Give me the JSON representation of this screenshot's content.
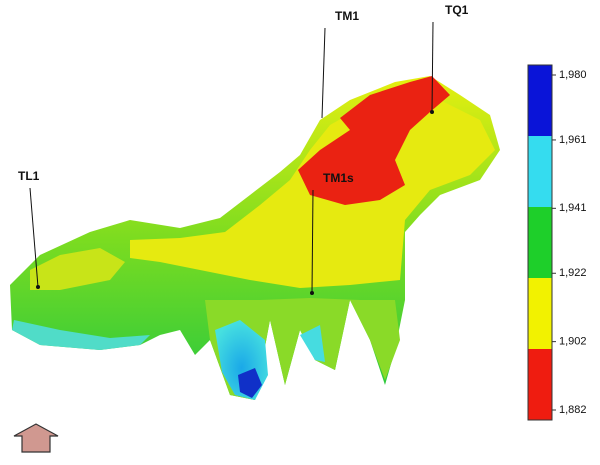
{
  "wells": [
    {
      "label": "TL1"
    },
    {
      "label": "TM1"
    },
    {
      "label": "TQ1"
    },
    {
      "label": "TM1s"
    }
  ],
  "colorbar": {
    "ticks": [
      {
        "value": 1980,
        "label": "1,980"
      },
      {
        "value": 1961,
        "label": "1,961"
      },
      {
        "value": 1941,
        "label": "1,941"
      },
      {
        "value": 1922,
        "label": "1,922"
      },
      {
        "value": 1902,
        "label": "1,902"
      },
      {
        "value": 1882,
        "label": "1,882"
      }
    ],
    "colors": [
      "#0a14d8",
      "#35dcef",
      "#1ecf2a",
      "#f2f200",
      "#ef1c10"
    ]
  }
}
